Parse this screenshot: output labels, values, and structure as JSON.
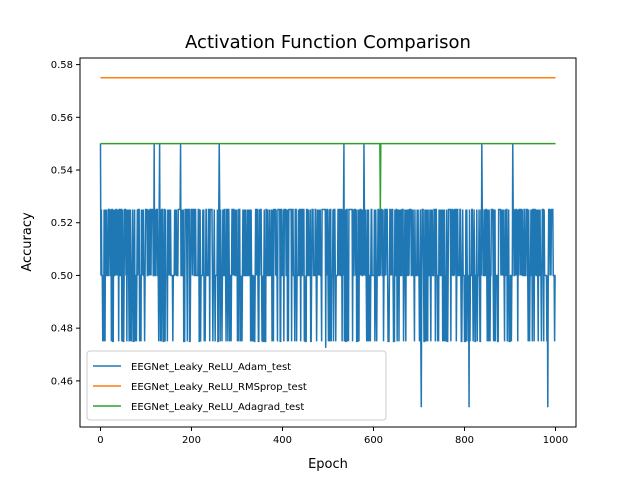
{
  "chart_data": {
    "type": "line",
    "title": "Activation Function Comparison",
    "xlabel": "Epoch",
    "ylabel": "Accuracy",
    "xlim": [
      -45,
      1045
    ],
    "ylim": [
      0.4425,
      0.5825
    ],
    "xticks": [
      0,
      200,
      400,
      600,
      800,
      1000
    ],
    "xtick_labels": [
      "0",
      "200",
      "400",
      "600",
      "800",
      "1000"
    ],
    "yticks": [
      0.46,
      0.48,
      0.5,
      0.52,
      0.54,
      0.56,
      0.58
    ],
    "ytick_labels": [
      "0.46",
      "0.48",
      "0.50",
      "0.52",
      "0.54",
      "0.56",
      "0.58"
    ],
    "grid": false,
    "legend_position": "lower-left",
    "series": [
      {
        "name": "EEGNet_Leaky_ReLU_Adam_test",
        "color": "#1f77b4",
        "levels": [
          0.45,
          0.475,
          0.5,
          0.525,
          0.55
        ],
        "typical_range": [
          0.475,
          0.525
        ],
        "start_value": 0.55,
        "spikes_high": [
          [
            0,
            0.55
          ],
          [
            118,
            0.55
          ],
          [
            130,
            0.55
          ],
          [
            176,
            0.55
          ],
          [
            261,
            0.55
          ],
          [
            535,
            0.55
          ],
          [
            579,
            0.55
          ],
          [
            838,
            0.55
          ],
          [
            906,
            0.55
          ]
        ],
        "spikes_low": [
          [
            495,
            0.4725
          ],
          [
            705,
            0.45
          ],
          [
            810,
            0.45
          ],
          [
            983,
            0.45
          ]
        ],
        "x_range": [
          0,
          1000
        ]
      },
      {
        "name": "EEGNet_Leaky_ReLU_RMSprop_test",
        "color": "#ff7f0e",
        "x": [
          0,
          1000
        ],
        "y": [
          0.575,
          0.575
        ]
      },
      {
        "name": "EEGNet_Leaky_ReLU_Adagrad_test",
        "color": "#2ca02c",
        "x": [
          0,
          614,
          615,
          616,
          617,
          1000
        ],
        "y": [
          0.55,
          0.55,
          0.525,
          0.55,
          0.55,
          0.55
        ]
      }
    ]
  }
}
